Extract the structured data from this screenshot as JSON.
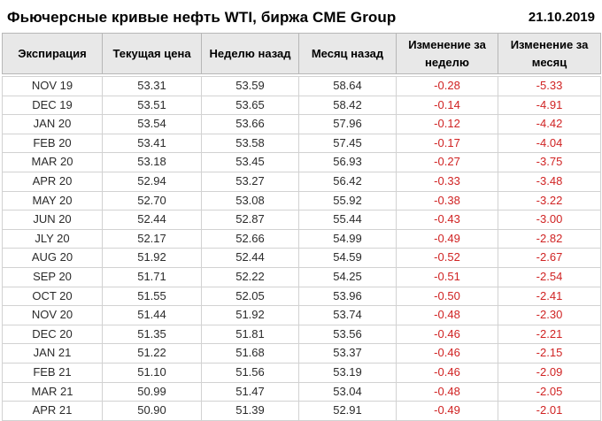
{
  "header": {
    "title": "Фьючерсные кривые нефть WTI, биржа CME Group",
    "date": "21.10.2019"
  },
  "table": {
    "columns": [
      "Экспирация",
      "Текущая цена",
      "Неделю назад",
      "Месяц назад",
      "Изменение за неделю",
      "Изменение за месяц"
    ],
    "rows": [
      {
        "expiration": "NOV 19",
        "current": "53.31",
        "week_ago": "53.59",
        "month_ago": "58.64",
        "week_change": "-0.28",
        "month_change": "-5.33"
      },
      {
        "expiration": "DEC 19",
        "current": "53.51",
        "week_ago": "53.65",
        "month_ago": "58.42",
        "week_change": "-0.14",
        "month_change": "-4.91"
      },
      {
        "expiration": "JAN 20",
        "current": "53.54",
        "week_ago": "53.66",
        "month_ago": "57.96",
        "week_change": "-0.12",
        "month_change": "-4.42"
      },
      {
        "expiration": "FEB 20",
        "current": "53.41",
        "week_ago": "53.58",
        "month_ago": "57.45",
        "week_change": "-0.17",
        "month_change": "-4.04"
      },
      {
        "expiration": "MAR 20",
        "current": "53.18",
        "week_ago": "53.45",
        "month_ago": "56.93",
        "week_change": "-0.27",
        "month_change": "-3.75"
      },
      {
        "expiration": "APR 20",
        "current": "52.94",
        "week_ago": "53.27",
        "month_ago": "56.42",
        "week_change": "-0.33",
        "month_change": "-3.48"
      },
      {
        "expiration": "MAY 20",
        "current": "52.70",
        "week_ago": "53.08",
        "month_ago": "55.92",
        "week_change": "-0.38",
        "month_change": "-3.22"
      },
      {
        "expiration": "JUN 20",
        "current": "52.44",
        "week_ago": "52.87",
        "month_ago": "55.44",
        "week_change": "-0.43",
        "month_change": "-3.00"
      },
      {
        "expiration": "JLY 20",
        "current": "52.17",
        "week_ago": "52.66",
        "month_ago": "54.99",
        "week_change": "-0.49",
        "month_change": "-2.82"
      },
      {
        "expiration": "AUG 20",
        "current": "51.92",
        "week_ago": "52.44",
        "month_ago": "54.59",
        "week_change": "-0.52",
        "month_change": "-2.67"
      },
      {
        "expiration": "SEP 20",
        "current": "51.71",
        "week_ago": "52.22",
        "month_ago": "54.25",
        "week_change": "-0.51",
        "month_change": "-2.54"
      },
      {
        "expiration": "OCT 20",
        "current": "51.55",
        "week_ago": "52.05",
        "month_ago": "53.96",
        "week_change": "-0.50",
        "month_change": "-2.41"
      },
      {
        "expiration": "NOV 20",
        "current": "51.44",
        "week_ago": "51.92",
        "month_ago": "53.74",
        "week_change": "-0.48",
        "month_change": "-2.30"
      },
      {
        "expiration": "DEC 20",
        "current": "51.35",
        "week_ago": "51.81",
        "month_ago": "53.56",
        "week_change": "-0.46",
        "month_change": "-2.21"
      },
      {
        "expiration": "JAN 21",
        "current": "51.22",
        "week_ago": "51.68",
        "month_ago": "53.37",
        "week_change": "-0.46",
        "month_change": "-2.15"
      },
      {
        "expiration": "FEB 21",
        "current": "51.10",
        "week_ago": "51.56",
        "month_ago": "53.19",
        "week_change": "-0.46",
        "month_change": "-2.09"
      },
      {
        "expiration": "MAR 21",
        "current": "50.99",
        "week_ago": "51.47",
        "month_ago": "53.04",
        "week_change": "-0.48",
        "month_change": "-2.05"
      },
      {
        "expiration": "APR 21",
        "current": "50.90",
        "week_ago": "51.39",
        "month_ago": "52.91",
        "week_change": "-0.49",
        "month_change": "-2.01"
      }
    ]
  },
  "colors": {
    "negative_value": "#d02323",
    "header_bg": "#e8e8e8",
    "header_border": "#b7b7b7",
    "grid_border": "#d2d2d2",
    "cell_text": "#2b2b2b"
  },
  "chart_data": {
    "type": "table",
    "title": "Фьючерсные кривые нефть WTI, биржа CME Group",
    "date": "21.10.2019",
    "columns": [
      "Экспирация",
      "Текущая цена",
      "Неделю назад",
      "Месяц назад",
      "Изменение за неделю",
      "Изменение за месяц"
    ],
    "rows": [
      [
        "NOV 19",
        53.31,
        53.59,
        58.64,
        -0.28,
        -5.33
      ],
      [
        "DEC 19",
        53.51,
        53.65,
        58.42,
        -0.14,
        -4.91
      ],
      [
        "JAN 20",
        53.54,
        53.66,
        57.96,
        -0.12,
        -4.42
      ],
      [
        "FEB 20",
        53.41,
        53.58,
        57.45,
        -0.17,
        -4.04
      ],
      [
        "MAR 20",
        53.18,
        53.45,
        56.93,
        -0.27,
        -3.75
      ],
      [
        "APR 20",
        52.94,
        53.27,
        56.42,
        -0.33,
        -3.48
      ],
      [
        "MAY 20",
        52.7,
        53.08,
        55.92,
        -0.38,
        -3.22
      ],
      [
        "JUN 20",
        52.44,
        52.87,
        55.44,
        -0.43,
        -3.0
      ],
      [
        "JLY 20",
        52.17,
        52.66,
        54.99,
        -0.49,
        -2.82
      ],
      [
        "AUG 20",
        51.92,
        52.44,
        54.59,
        -0.52,
        -2.67
      ],
      [
        "SEP 20",
        51.71,
        52.22,
        54.25,
        -0.51,
        -2.54
      ],
      [
        "OCT 20",
        51.55,
        52.05,
        53.96,
        -0.5,
        -2.41
      ],
      [
        "NOV 20",
        51.44,
        51.92,
        53.74,
        -0.48,
        -2.3
      ],
      [
        "DEC 20",
        51.35,
        51.81,
        53.56,
        -0.46,
        -2.21
      ],
      [
        "JAN 21",
        51.22,
        51.68,
        53.37,
        -0.46,
        -2.15
      ],
      [
        "FEB 21",
        51.1,
        51.56,
        53.19,
        -0.46,
        -2.09
      ],
      [
        "MAR 21",
        50.99,
        51.47,
        53.04,
        -0.48,
        -2.05
      ],
      [
        "APR 21",
        50.9,
        51.39,
        52.91,
        -0.49,
        -2.01
      ]
    ],
    "notes": "Negative change values rendered in red; static table, no legend or axes."
  }
}
